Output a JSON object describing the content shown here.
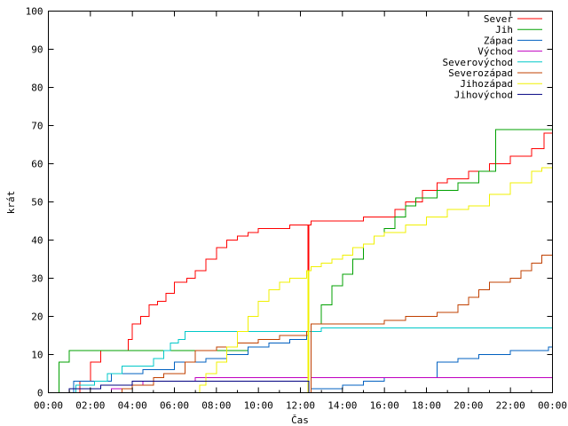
{
  "chart_data": {
    "type": "line",
    "xlabel": "Čas",
    "ylabel": "krát",
    "xlim": [
      0,
      24
    ],
    "ylim": [
      0,
      100
    ],
    "x_ticks": [
      0,
      2,
      4,
      6,
      8,
      10,
      12,
      14,
      16,
      18,
      20,
      22,
      24
    ],
    "x_tick_labels": [
      "00:00",
      "02:00",
      "04:00",
      "06:00",
      "08:00",
      "10:00",
      "12:00",
      "14:00",
      "16:00",
      "18:00",
      "20:00",
      "22:00",
      "00:00"
    ],
    "y_ticks": [
      0,
      10,
      20,
      30,
      40,
      50,
      60,
      70,
      80,
      90,
      100
    ],
    "y_tick_labels": [
      "0",
      "10",
      "20",
      "30",
      "40",
      "50",
      "60",
      "70",
      "80",
      "90",
      "100"
    ],
    "legend_position": "top-right",
    "grid": false,
    "series": [
      {
        "name": "Sever",
        "color": "#ff0000",
        "points": [
          [
            0,
            0
          ],
          [
            1.1,
            0
          ],
          [
            1.5,
            3
          ],
          [
            2,
            8
          ],
          [
            2.5,
            11
          ],
          [
            3.5,
            11
          ],
          [
            3.8,
            14
          ],
          [
            4,
            18
          ],
          [
            4.4,
            20
          ],
          [
            4.8,
            23
          ],
          [
            5.2,
            24
          ],
          [
            5.6,
            26
          ],
          [
            6,
            29
          ],
          [
            6.6,
            30
          ],
          [
            7,
            32
          ],
          [
            7.5,
            35
          ],
          [
            8,
            38
          ],
          [
            8.5,
            40
          ],
          [
            9,
            41
          ],
          [
            9.5,
            42
          ],
          [
            10,
            43
          ],
          [
            11,
            43
          ],
          [
            11.5,
            44
          ],
          [
            12.3,
            44
          ],
          [
            12.35,
            3
          ],
          [
            12.4,
            44
          ],
          [
            12.5,
            45
          ],
          [
            14,
            45
          ],
          [
            15,
            46
          ],
          [
            16,
            46
          ],
          [
            16.5,
            48
          ],
          [
            17,
            50
          ],
          [
            17.8,
            53
          ],
          [
            18.5,
            55
          ],
          [
            19,
            56
          ],
          [
            20,
            58
          ],
          [
            21,
            60
          ],
          [
            22,
            62
          ],
          [
            23,
            64
          ],
          [
            23.6,
            68
          ],
          [
            24,
            71
          ]
        ]
      },
      {
        "name": "Jih",
        "color": "#00a000",
        "points": [
          [
            0,
            0
          ],
          [
            0.5,
            8
          ],
          [
            1,
            11
          ],
          [
            6,
            11
          ],
          [
            8,
            11
          ],
          [
            9.5,
            12
          ],
          [
            10.5,
            13
          ],
          [
            11.5,
            14
          ],
          [
            12.3,
            15
          ],
          [
            12.4,
            0
          ],
          [
            12.5,
            18
          ],
          [
            13,
            23
          ],
          [
            13.5,
            28
          ],
          [
            14,
            31
          ],
          [
            14.5,
            35
          ],
          [
            15,
            39
          ],
          [
            15.5,
            41
          ],
          [
            16,
            43
          ],
          [
            16.5,
            46
          ],
          [
            17,
            49
          ],
          [
            17.5,
            51
          ],
          [
            18.5,
            53
          ],
          [
            19.5,
            55
          ],
          [
            20.5,
            58
          ],
          [
            21.3,
            69
          ],
          [
            24,
            69
          ]
        ]
      },
      {
        "name": "Západ",
        "color": "#0060c0",
        "points": [
          [
            0,
            0
          ],
          [
            1,
            0
          ],
          [
            1.2,
            3
          ],
          [
            2.5,
            3
          ],
          [
            3,
            5
          ],
          [
            4.5,
            6
          ],
          [
            6,
            8
          ],
          [
            7.5,
            9
          ],
          [
            8.5,
            10
          ],
          [
            9.5,
            12
          ],
          [
            10.5,
            13
          ],
          [
            11.5,
            14
          ],
          [
            12.3,
            15
          ],
          [
            12.4,
            0
          ],
          [
            12.5,
            1
          ],
          [
            13.5,
            1
          ],
          [
            14,
            2
          ],
          [
            15,
            3
          ],
          [
            16,
            4
          ],
          [
            18,
            4
          ],
          [
            18.5,
            8
          ],
          [
            19.5,
            9
          ],
          [
            20.5,
            10
          ],
          [
            22,
            11
          ],
          [
            23,
            11
          ],
          [
            23.8,
            12
          ],
          [
            24,
            12
          ]
        ]
      },
      {
        "name": "Východ",
        "color": "#c000c0",
        "points": [
          [
            0,
            0
          ],
          [
            2.5,
            0
          ],
          [
            3,
            1
          ],
          [
            4,
            2
          ],
          [
            4.5,
            3
          ],
          [
            6,
            3
          ],
          [
            7,
            4
          ],
          [
            12.3,
            4
          ],
          [
            12.4,
            0
          ],
          [
            12.5,
            4
          ],
          [
            24,
            4
          ]
        ]
      },
      {
        "name": "Severovýchod",
        "color": "#00c8c8",
        "points": [
          [
            0,
            0
          ],
          [
            1,
            0
          ],
          [
            1.3,
            2
          ],
          [
            2.2,
            3
          ],
          [
            2.8,
            5
          ],
          [
            3.5,
            7
          ],
          [
            4.5,
            7
          ],
          [
            5,
            9
          ],
          [
            5.5,
            11
          ],
          [
            5.8,
            13
          ],
          [
            6.2,
            14
          ],
          [
            6.5,
            16
          ],
          [
            12,
            16
          ],
          [
            12.5,
            16
          ],
          [
            13,
            17
          ],
          [
            18,
            17
          ],
          [
            18.5,
            17
          ],
          [
            24,
            17
          ]
        ]
      },
      {
        "name": "Severozápad",
        "color": "#c04000",
        "points": [
          [
            0,
            0
          ],
          [
            3,
            0
          ],
          [
            3.5,
            1
          ],
          [
            4,
            2
          ],
          [
            5,
            4
          ],
          [
            5.5,
            5
          ],
          [
            6.5,
            8
          ],
          [
            7,
            11
          ],
          [
            8,
            12
          ],
          [
            9,
            13
          ],
          [
            10,
            14
          ],
          [
            11,
            15
          ],
          [
            12.3,
            16
          ],
          [
            12.4,
            0
          ],
          [
            12.5,
            18
          ],
          [
            14,
            18
          ],
          [
            15,
            18
          ],
          [
            16,
            19
          ],
          [
            17,
            20
          ],
          [
            18.5,
            21
          ],
          [
            19.5,
            23
          ],
          [
            20,
            25
          ],
          [
            20.5,
            27
          ],
          [
            21,
            29
          ],
          [
            22,
            30
          ],
          [
            22.5,
            32
          ],
          [
            23,
            34
          ],
          [
            23.5,
            36
          ],
          [
            24,
            37
          ]
        ]
      },
      {
        "name": "Jihozápad",
        "color": "#f0f000",
        "points": [
          [
            0,
            0
          ],
          [
            6.8,
            0
          ],
          [
            7.2,
            2
          ],
          [
            7.5,
            5
          ],
          [
            8,
            8
          ],
          [
            8.5,
            12
          ],
          [
            9,
            16
          ],
          [
            9.5,
            20
          ],
          [
            10,
            24
          ],
          [
            10.5,
            27
          ],
          [
            11,
            29
          ],
          [
            11.5,
            30
          ],
          [
            12.3,
            32
          ],
          [
            12.35,
            0
          ],
          [
            12.4,
            32
          ],
          [
            12.5,
            33
          ],
          [
            13,
            34
          ],
          [
            13.5,
            35
          ],
          [
            14,
            36
          ],
          [
            14.5,
            38
          ],
          [
            15,
            39
          ],
          [
            15.5,
            41
          ],
          [
            16,
            42
          ],
          [
            17,
            44
          ],
          [
            18,
            46
          ],
          [
            19,
            48
          ],
          [
            20,
            49
          ],
          [
            21,
            52
          ],
          [
            22,
            55
          ],
          [
            23,
            58
          ],
          [
            23.5,
            59
          ],
          [
            24,
            59
          ]
        ]
      },
      {
        "name": "Jihovýchod",
        "color": "#000080",
        "points": [
          [
            0,
            0
          ],
          [
            0.9,
            0
          ],
          [
            1,
            1
          ],
          [
            2,
            1
          ],
          [
            2.5,
            2
          ],
          [
            3.5,
            2
          ],
          [
            4,
            3
          ],
          [
            12.3,
            3
          ],
          [
            12.4,
            0
          ],
          [
            24,
            0
          ]
        ]
      }
    ]
  }
}
